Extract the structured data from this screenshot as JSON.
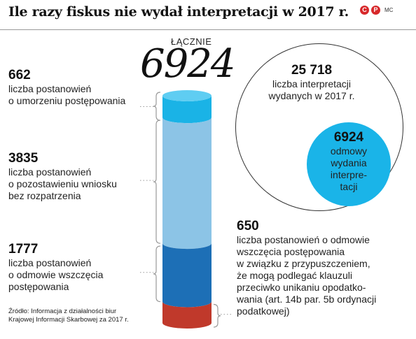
{
  "title": "Ile razy fiskus nie wydał interpretacji w 2017 r.",
  "logo": {
    "c_label": "C",
    "p_label": "P",
    "author": "MC"
  },
  "total": {
    "label": "ŁĄCZNIE",
    "value": "6924"
  },
  "segments": [
    {
      "value": "662",
      "desc": [
        "liczba postanowień",
        "o umorzeniu postępowania"
      ],
      "color": "#1ab3e6"
    },
    {
      "value": "3835",
      "desc": [
        "liczba postanowień",
        "o pozostawieniu wniosku",
        "bez rozpatrzenia"
      ],
      "color": "#8cc4e6"
    },
    {
      "value": "1777",
      "desc": [
        "liczba postanowień",
        "o odmowie wszczęcia",
        "postępowania"
      ],
      "color": "#1d6fb6"
    },
    {
      "value": "650",
      "desc": [
        "liczba postanowień o odmowie",
        "wszczęcia postępowania",
        "w związku z przypuszczeniem,",
        "że mogą podlegać klauzuli",
        "przeciwko unikaniu opodatko-",
        "wania (art. 14b par. 5b ordynacji",
        "podatkowej)"
      ],
      "color": "#c0392b"
    }
  ],
  "circle_big": {
    "value": "25 718",
    "desc": [
      "liczba interpretacji",
      "wydanych w 2017 r."
    ]
  },
  "circle_small": {
    "value": "6924",
    "desc": [
      "odmowy",
      "wydania",
      "interpre-",
      "tacji"
    ]
  },
  "source": [
    "Źródło: Informacja z działalności biur",
    "Krajowej Informacji Skarbowej za 2017 r."
  ],
  "chart_data": {
    "type": "bar",
    "title": "Ile razy fiskus nie wydał interpretacji w 2017 r.",
    "stacked": true,
    "categories": [
      "2017"
    ],
    "series": [
      {
        "name": "liczba postanowień o umorzeniu postępowania",
        "values": [
          662
        ]
      },
      {
        "name": "liczba postanowień o pozostawieniu wniosku bez rozpatrzenia",
        "values": [
          3835
        ]
      },
      {
        "name": "liczba postanowień o odmowie wszczęcia postępowania",
        "values": [
          1777
        ]
      },
      {
        "name": "liczba postanowień o odmowie wszczęcia postępowania w związku z przypuszczeniem, że mogą podlegać klauzuli przeciwko unikaniu opodatkowania (art. 14b par. 5b ordynacji podatkowej)",
        "values": [
          650
        ]
      }
    ],
    "total": 6924,
    "comparison": {
      "interpretations_issued": 25718,
      "refusals": 6924
    }
  }
}
